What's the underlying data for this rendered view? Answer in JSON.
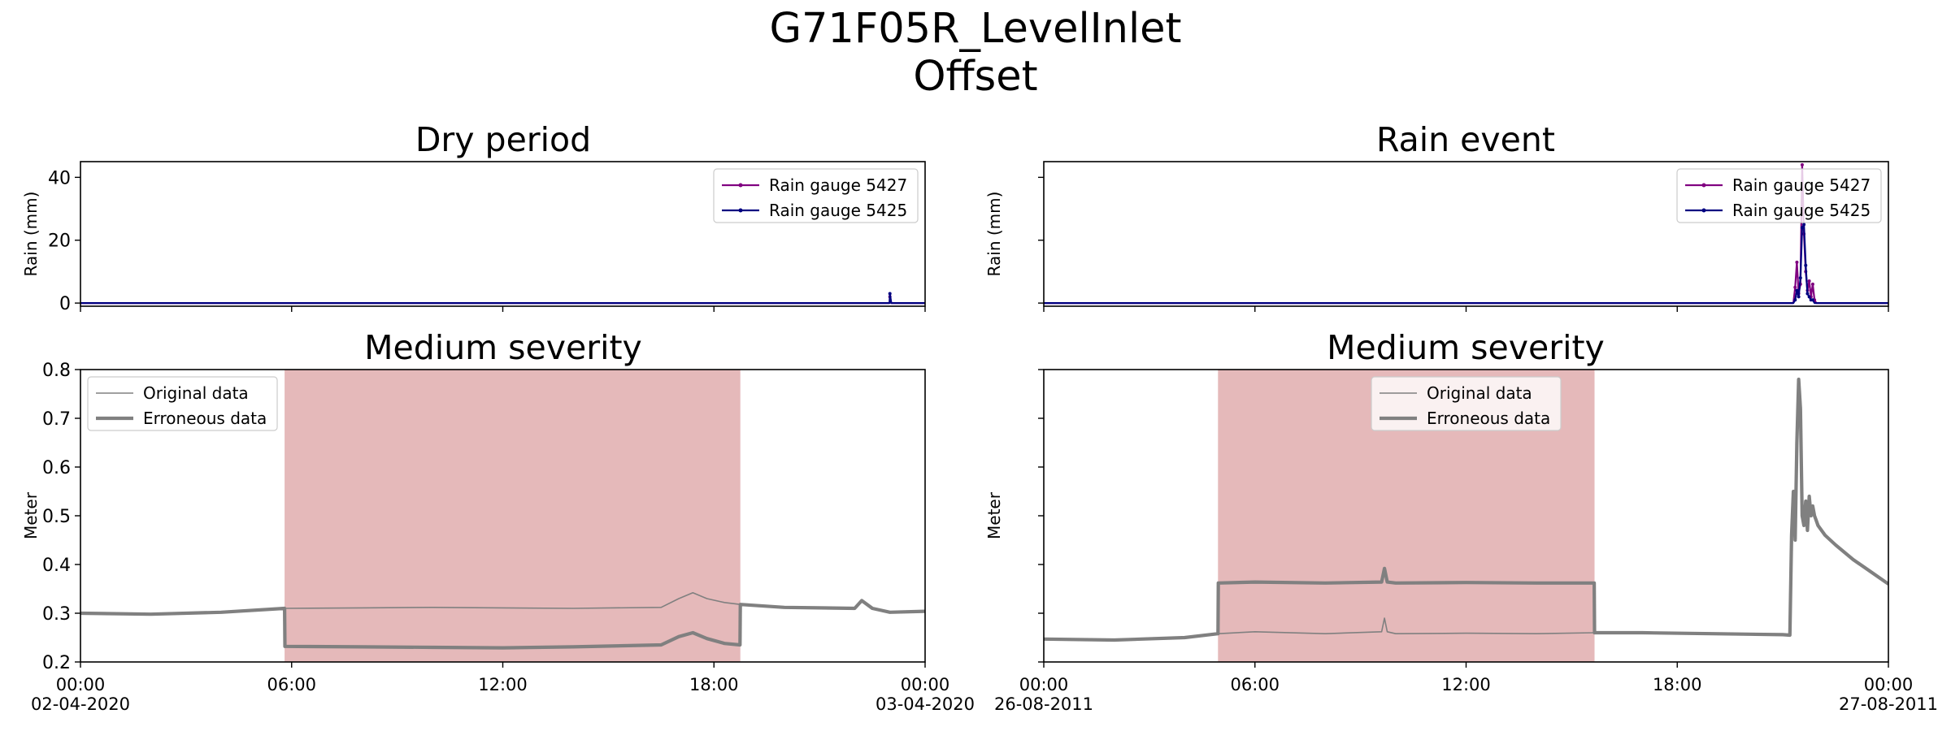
{
  "figure": {
    "title_line1": "G71F05R_LevelInlet",
    "title_line2": "Offset"
  },
  "chart_data": [
    {
      "id": "rain-dry",
      "type": "line",
      "title": "Dry period",
      "xlabel": "",
      "ylabel": "Rain (mm)",
      "xlim_hours": [
        0,
        24
      ],
      "ylim": [
        -1,
        45
      ],
      "yticks": [
        0,
        20,
        40
      ],
      "grid": false,
      "legend_position": "top-right",
      "series": [
        {
          "name": "Rain gauge 5427",
          "color": "#800080",
          "x": [
            0,
            22.99,
            23.0,
            23.04,
            23.08,
            24
          ],
          "y": [
            0,
            0,
            2.0,
            0,
            0,
            0
          ]
        },
        {
          "name": "Rain gauge 5425",
          "color": "#000080",
          "x": [
            0,
            22.99,
            23.0,
            23.04,
            23.08,
            24
          ],
          "y": [
            0,
            0,
            3.0,
            0,
            0,
            0
          ]
        }
      ]
    },
    {
      "id": "rain-event",
      "type": "line",
      "title": "Rain event",
      "xlabel": "",
      "ylabel": "Rain (mm)",
      "xlim_hours": [
        0,
        24
      ],
      "ylim": [
        -1,
        45
      ],
      "yticks": [
        0,
        20,
        40
      ],
      "grid": false,
      "legend_position": "top-right",
      "series": [
        {
          "name": "Rain gauge 5427",
          "color": "#800080",
          "x": [
            0,
            21.3,
            21.35,
            21.4,
            21.45,
            21.5,
            21.55,
            21.6,
            21.65,
            21.7,
            21.75,
            21.8,
            21.85,
            21.9,
            21.95,
            22.0,
            22.05,
            22.1,
            24
          ],
          "y": [
            0,
            0,
            5,
            13,
            3,
            6,
            44,
            22,
            10,
            4,
            7,
            2,
            6,
            1,
            0,
            0,
            0,
            0,
            0
          ]
        },
        {
          "name": "Rain gauge 5425",
          "color": "#000080",
          "x": [
            0,
            21.3,
            21.35,
            21.4,
            21.45,
            21.5,
            21.55,
            21.6,
            21.65,
            21.7,
            21.75,
            21.8,
            21.85,
            21.9,
            21.95,
            22.0,
            22.05,
            22.1,
            24
          ],
          "y": [
            0,
            0,
            1,
            4,
            2,
            8,
            24,
            25,
            12,
            3,
            2,
            1,
            1,
            0,
            0,
            0,
            0,
            0,
            0
          ]
        }
      ]
    },
    {
      "id": "level-dry",
      "type": "line",
      "title": "Medium severity",
      "xlabel": "",
      "ylabel": "Meter",
      "xlim_hours": [
        0,
        24
      ],
      "ylim": [
        0.2,
        0.8
      ],
      "yticks": [
        "0.2",
        "0.3",
        "0.4",
        "0.5",
        "0.6",
        "0.7",
        "0.8"
      ],
      "xticks": [
        {
          "h": 0,
          "line1": "00:00",
          "line2": "02-04-2020"
        },
        {
          "h": 6,
          "line1": "06:00",
          "line2": ""
        },
        {
          "h": 12,
          "line1": "12:00",
          "line2": ""
        },
        {
          "h": 18,
          "line1": "18:00",
          "line2": ""
        },
        {
          "h": 24,
          "line1": "00:00",
          "line2": "03-04-2020"
        }
      ],
      "grid": false,
      "legend_position": "top-left",
      "error_span_hours": [
        5.8,
        18.75
      ],
      "series": [
        {
          "name": "Original data",
          "color": "#808080",
          "linewidth": "thin",
          "x": [
            0,
            2,
            4,
            5.8,
            8,
            10,
            12,
            14,
            16.5,
            17,
            17.4,
            17.8,
            18.3,
            18.75,
            20,
            22.0,
            22.2,
            22.5,
            23,
            24
          ],
          "y": [
            0.3,
            0.298,
            0.302,
            0.31,
            0.311,
            0.312,
            0.311,
            0.31,
            0.312,
            0.33,
            0.342,
            0.33,
            0.322,
            0.318,
            0.312,
            0.31,
            0.326,
            0.31,
            0.302,
            0.304
          ]
        },
        {
          "name": "Erroneous data",
          "color": "#808080",
          "linewidth": "thick",
          "x": [
            0,
            2,
            4,
            5.8,
            5.81,
            8,
            10,
            12,
            14,
            16.5,
            17,
            17.4,
            17.8,
            18.3,
            18.74,
            18.75,
            20,
            22.0,
            22.2,
            22.5,
            23,
            24
          ],
          "y": [
            0.3,
            0.298,
            0.302,
            0.31,
            0.232,
            0.231,
            0.23,
            0.229,
            0.231,
            0.235,
            0.252,
            0.26,
            0.248,
            0.238,
            0.235,
            0.318,
            0.312,
            0.31,
            0.326,
            0.31,
            0.302,
            0.304
          ]
        }
      ]
    },
    {
      "id": "level-rain",
      "type": "line",
      "title": "Medium severity",
      "xlabel": "",
      "ylabel": "Meter",
      "xlim_hours": [
        0,
        24
      ],
      "ylim": [
        0.2,
        0.8
      ],
      "xticks": [
        {
          "h": 0,
          "line1": "00:00",
          "line2": "26-08-2011"
        },
        {
          "h": 6,
          "line1": "06:00",
          "line2": ""
        },
        {
          "h": 12,
          "line1": "12:00",
          "line2": ""
        },
        {
          "h": 18,
          "line1": "18:00",
          "line2": ""
        },
        {
          "h": 24,
          "line1": "00:00",
          "line2": "27-08-2011"
        }
      ],
      "grid": false,
      "legend_position": "top-center",
      "error_span_hours": [
        4.95,
        15.65
      ],
      "series": [
        {
          "name": "Original data",
          "color": "#808080",
          "linewidth": "thin",
          "x": [
            0,
            2,
            4,
            4.95,
            6,
            8,
            9.6,
            9.68,
            9.76,
            10,
            12,
            14,
            15.65,
            17,
            19,
            21,
            21.2,
            21.25,
            21.3,
            21.35,
            21.4,
            21.45,
            21.5,
            21.55,
            21.6,
            21.65,
            21.7,
            21.75,
            21.8,
            21.85,
            21.9,
            21.95,
            22.0,
            22.2,
            22.5,
            23,
            23.5,
            24
          ],
          "y": [
            0.247,
            0.245,
            0.25,
            0.258,
            0.262,
            0.258,
            0.262,
            0.29,
            0.262,
            0.258,
            0.259,
            0.258,
            0.26,
            0.26,
            0.258,
            0.256,
            0.255,
            0.46,
            0.55,
            0.45,
            0.65,
            0.78,
            0.72,
            0.5,
            0.48,
            0.53,
            0.47,
            0.54,
            0.5,
            0.52,
            0.5,
            0.49,
            0.48,
            0.46,
            0.44,
            0.41,
            0.385,
            0.36
          ]
        },
        {
          "name": "Erroneous data",
          "color": "#808080",
          "linewidth": "thick",
          "x": [
            0,
            2,
            4,
            4.95,
            4.96,
            6,
            8,
            9.6,
            9.68,
            9.76,
            10,
            12,
            14,
            15.64,
            15.65,
            17,
            19,
            21,
            21.2,
            21.25,
            21.3,
            21.35,
            21.4,
            21.45,
            21.5,
            21.55,
            21.6,
            21.65,
            21.7,
            21.75,
            21.8,
            21.85,
            21.9,
            21.95,
            22.0,
            22.2,
            22.5,
            23,
            23.5,
            24
          ],
          "y": [
            0.247,
            0.245,
            0.25,
            0.258,
            0.362,
            0.364,
            0.362,
            0.364,
            0.392,
            0.364,
            0.362,
            0.363,
            0.362,
            0.362,
            0.26,
            0.26,
            0.258,
            0.256,
            0.255,
            0.46,
            0.55,
            0.45,
            0.65,
            0.78,
            0.72,
            0.5,
            0.48,
            0.53,
            0.47,
            0.54,
            0.5,
            0.52,
            0.5,
            0.49,
            0.48,
            0.46,
            0.44,
            0.41,
            0.385,
            0.36
          ]
        }
      ]
    }
  ]
}
